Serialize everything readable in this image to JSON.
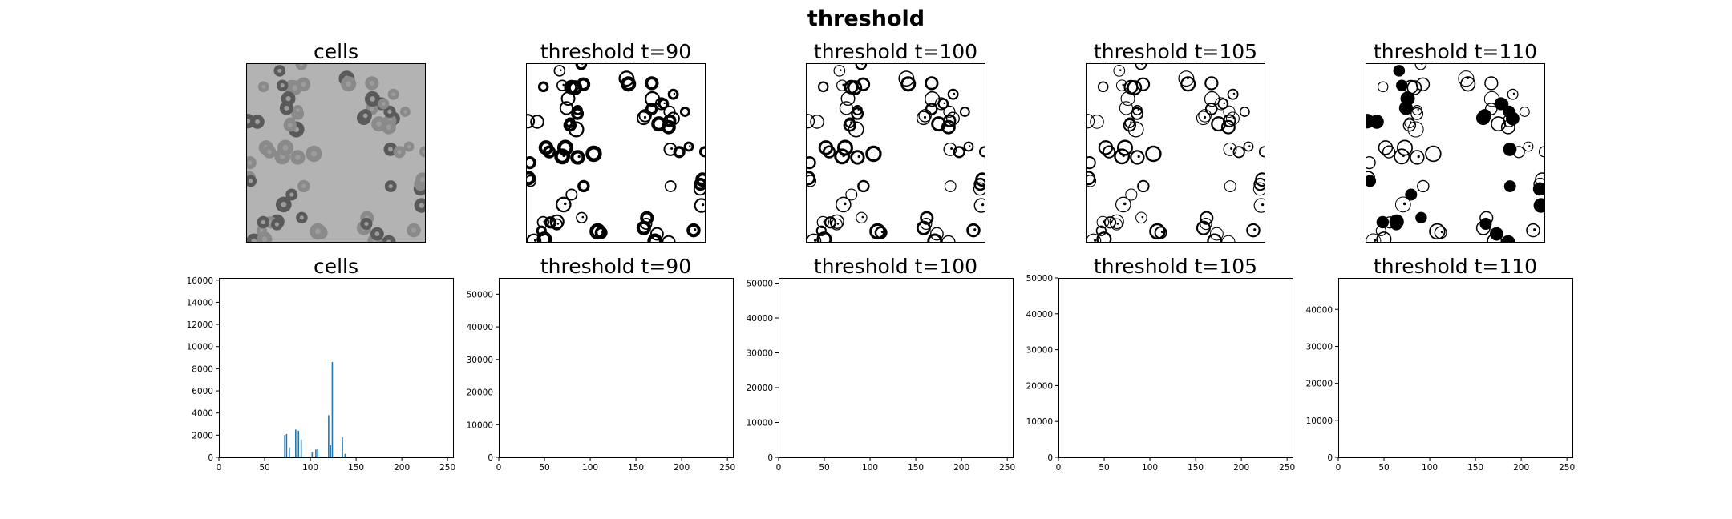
{
  "figure": {
    "title": "threshold"
  },
  "image_panels": [
    {
      "title": "cells",
      "kind": "grayscale"
    },
    {
      "title": "threshold t=90",
      "kind": "binary",
      "threshold": 90
    },
    {
      "title": "threshold t=100",
      "kind": "binary",
      "threshold": 100
    },
    {
      "title": "threshold t=105",
      "kind": "binary",
      "threshold": 105
    },
    {
      "title": "threshold t=110",
      "kind": "binary",
      "threshold": 110
    }
  ],
  "chart_data": [
    {
      "type": "bar",
      "title": "cells",
      "xlim": [
        0,
        256
      ],
      "ylim": [
        0,
        16200
      ],
      "xticks": [
        0,
        50,
        100,
        150,
        200,
        250
      ],
      "yticks": [
        0,
        2000,
        4000,
        6000,
        8000,
        10000,
        12000,
        14000,
        16000
      ],
      "x": [
        72,
        74,
        77,
        84,
        87,
        90,
        102,
        106,
        108,
        120,
        122,
        124,
        135,
        138
      ],
      "values": [
        2000,
        2100,
        900,
        2500,
        2400,
        1600,
        500,
        700,
        800,
        3800,
        1100,
        8600,
        1800,
        300
      ],
      "color": "#1f77b4"
    },
    {
      "type": "bar",
      "title": "threshold t=90",
      "xlim": [
        0,
        256
      ],
      "ylim": [
        0,
        55000
      ],
      "xticks": [
        0,
        50,
        100,
        150,
        200,
        250
      ],
      "yticks": [
        0,
        10000,
        20000,
        30000,
        40000,
        50000
      ],
      "x": [],
      "values": []
    },
    {
      "type": "bar",
      "title": "threshold t=100",
      "xlim": [
        0,
        256
      ],
      "ylim": [
        0,
        51500
      ],
      "xticks": [
        0,
        50,
        100,
        150,
        200,
        250
      ],
      "yticks": [
        0,
        10000,
        20000,
        30000,
        40000,
        50000
      ],
      "x": [],
      "values": []
    },
    {
      "type": "bar",
      "title": "threshold t=105",
      "xlim": [
        0,
        256
      ],
      "ylim": [
        0,
        50000
      ],
      "xticks": [
        0,
        50,
        100,
        150,
        200,
        250
      ],
      "yticks": [
        0,
        10000,
        20000,
        30000,
        40000,
        50000
      ],
      "x": [],
      "values": []
    },
    {
      "type": "bar",
      "title": "threshold t=110",
      "xlim": [
        0,
        256
      ],
      "ylim": [
        0,
        48500
      ],
      "xticks": [
        0,
        50,
        100,
        150,
        200,
        250
      ],
      "yticks": [
        0,
        10000,
        20000,
        30000,
        40000
      ],
      "x": [],
      "values": []
    }
  ]
}
